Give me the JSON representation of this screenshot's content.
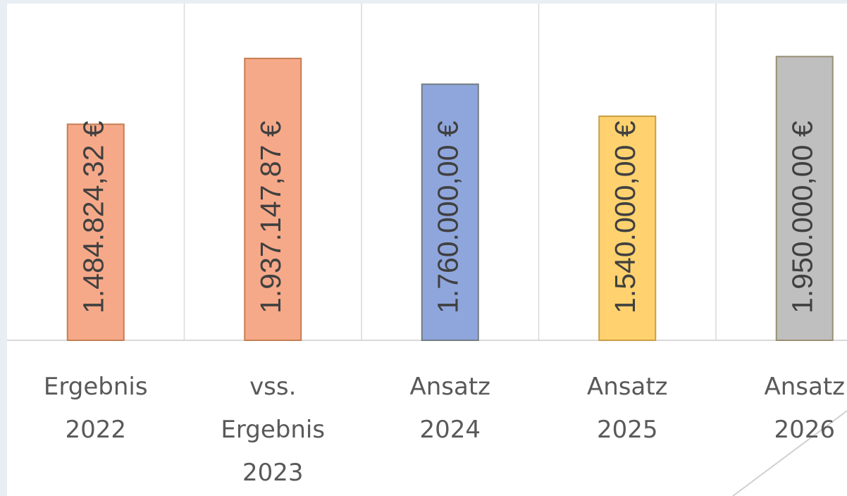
{
  "chart_data": {
    "type": "bar",
    "categories": [
      "Ergebnis 2022",
      "vss. Ergebnis 2023",
      "Ansatz 2024",
      "Ansatz 2025",
      "Ansatz 2026"
    ],
    "values": [
      1484824.32,
      1937147.87,
      1760000,
      1540000,
      1950000
    ],
    "value_labels": [
      "1.484.824,32 €",
      "1.937.147,87 €",
      "1.760.000,00 €",
      "1.540.000,00 €",
      "1.950.000,00 €"
    ],
    "colors": [
      "#f6a989",
      "#f6a989",
      "#8fa6dc",
      "#ffd26f",
      "#bfbfbf"
    ],
    "ylim": [
      0,
      2300000
    ]
  }
}
